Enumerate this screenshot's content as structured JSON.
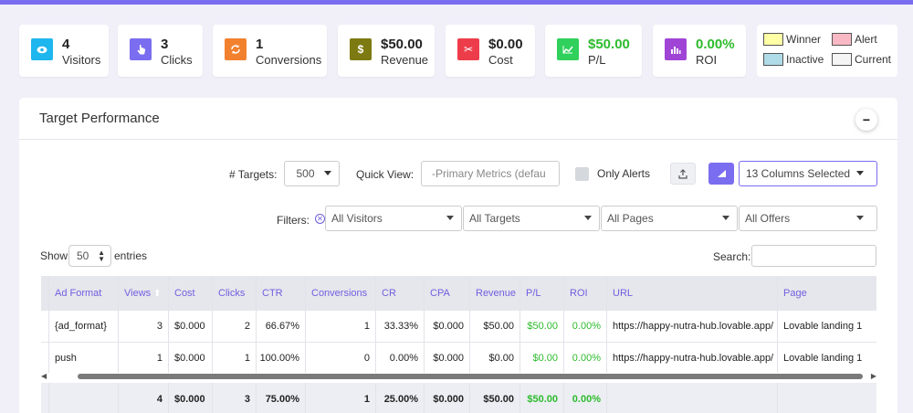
{
  "stats": [
    {
      "value": "4",
      "label": "Visitors",
      "color": "#1eb6ee",
      "icon": "eye-icon"
    },
    {
      "value": "3",
      "label": "Clicks",
      "color": "#7b6df0",
      "icon": "pointer-icon"
    },
    {
      "value": "1",
      "label": "Conversions",
      "color": "#f2812f",
      "icon": "refresh-icon"
    },
    {
      "value": "$50.00",
      "label": "Revenue",
      "color": "#7d7a12",
      "icon": "dollar-icon"
    },
    {
      "value": "$0.00",
      "label": "Cost",
      "color": "#ee3d4a",
      "icon": "scissors-icon"
    },
    {
      "value": "$50.00",
      "label": "P/L",
      "color": "#2fd05b",
      "icon": "trend-icon"
    },
    {
      "value": "0.00%",
      "label": "ROI",
      "color": "#a044d6",
      "icon": "bar-chart-icon"
    }
  ],
  "legend": [
    {
      "label": "Winner",
      "color": "#ffffa6"
    },
    {
      "label": "Alert",
      "color": "#f8b9c4"
    },
    {
      "label": "Inactive",
      "color": "#aedbe6"
    },
    {
      "label": "Current",
      "color": "#f5f5f5"
    }
  ],
  "panel": {
    "title": "Target Performance",
    "collapse_label": "−"
  },
  "controls": {
    "targets_label": "# Targets:",
    "targets_value": "500",
    "quick_view_label": "Quick View:",
    "quick_view_value": "-Primary Metrics (defau",
    "only_alerts_label": "Only Alerts",
    "columns_value": "13 Columns Selected",
    "filters_label": "Filters:",
    "filter_visitors": "All Visitors",
    "filter_targets": "All Targets",
    "filter_pages": "All Pages",
    "filter_offers": "All Offers",
    "show_label": "Show",
    "show_value": "50",
    "entries_label": "entries",
    "search_label": "Search:",
    "search_value": ""
  },
  "table": {
    "headers": [
      "Ad Format",
      "Views",
      "Cost",
      "Clicks",
      "CTR",
      "Conversions",
      "CR",
      "CPA",
      "Revenue",
      "P/L",
      "ROI",
      "URL",
      "Page"
    ],
    "rows": [
      [
        "{ad_format}",
        "3",
        "$0.000",
        "2",
        "66.67%",
        "1",
        "33.33%",
        "$0.000",
        "$50.00",
        "$50.00",
        "0.00%",
        "https://happy-nutra-hub.lovable.app/",
        "Lovable landing 1"
      ],
      [
        "push",
        "1",
        "$0.000",
        "1",
        "100.00%",
        "0",
        "0.00%",
        "$0.000",
        "$0.00",
        "$0.00",
        "0.00%",
        "https://happy-nutra-hub.lovable.app/",
        "Lovable landing 1"
      ]
    ],
    "footer": [
      "",
      "4",
      "$0.000",
      "3",
      "75.00%",
      "1",
      "25.00%",
      "$0.000",
      "$50.00",
      "$50.00",
      "0.00%",
      "",
      ""
    ]
  }
}
